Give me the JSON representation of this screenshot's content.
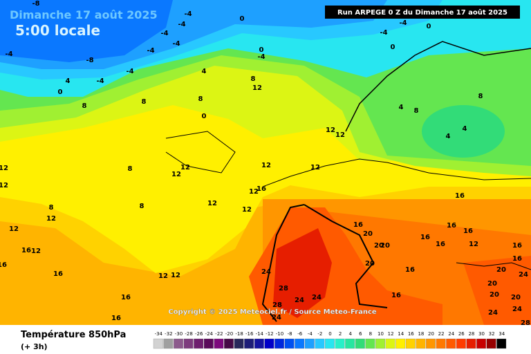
{
  "header": {
    "date": "Dimanche 17 août 2025",
    "time": "5:00 locale",
    "run": "Run ARPEGE 0 Z du Dimanche 17 août 2025"
  },
  "copyright": "Copyright © 2025 Meteociel.fr / Source Meteo-France",
  "legend": {
    "title": "Température 850hPa",
    "step": "(+ 3h)",
    "values": [
      -34,
      -32,
      -30,
      -28,
      -26,
      -24,
      -22,
      -20,
      -18,
      -16,
      -14,
      -12,
      -10,
      -8,
      -6,
      -4,
      -2,
      0,
      2,
      4,
      6,
      8,
      10,
      12,
      14,
      16,
      18,
      20,
      22,
      24,
      26,
      28,
      30,
      32,
      34
    ],
    "colors": [
      "#d2d2d2",
      "#a0a0a0",
      "#8c5a8c",
      "#7d3c7d",
      "#6e1e6e",
      "#5a0a5a",
      "#7d0a7d",
      "#460a46",
      "#28285a",
      "#1e1e78",
      "#1414a0",
      "#0000c8",
      "#0028dc",
      "#0050f0",
      "#0a78ff",
      "#1ea0ff",
      "#28c8ff",
      "#28e6f0",
      "#28f0c8",
      "#28e6a0",
      "#32dc78",
      "#64e650",
      "#a0f032",
      "#dcf514",
      "#fff000",
      "#ffd200",
      "#ffb400",
      "#ff9600",
      "#ff7800",
      "#ff5a00",
      "#ff3c00",
      "#e61e00",
      "#c80000",
      "#960000",
      "#000000"
    ]
  },
  "map": {
    "labels": [
      -8,
      -4,
      -4,
      0,
      -4,
      -8,
      -4,
      -4,
      -4,
      0,
      -4,
      -4,
      -4,
      0,
      0,
      -4,
      -4,
      4,
      4,
      0,
      8,
      8,
      12,
      8,
      0,
      8,
      4,
      8,
      8,
      4,
      4,
      12,
      12,
      12,
      12,
      12,
      12,
      8,
      8,
      12,
      12,
      16,
      12,
      8,
      12,
      12,
      12,
      16,
      16,
      12,
      16,
      16,
      16,
      12,
      12,
      24,
      28,
      24,
      24,
      28,
      24,
      16,
      20,
      20,
      20,
      20,
      16,
      16,
      16,
      16,
      16,
      16,
      12,
      16,
      16,
      20,
      20,
      20,
      20,
      24,
      24,
      24,
      28,
      16,
      12
    ]
  }
}
